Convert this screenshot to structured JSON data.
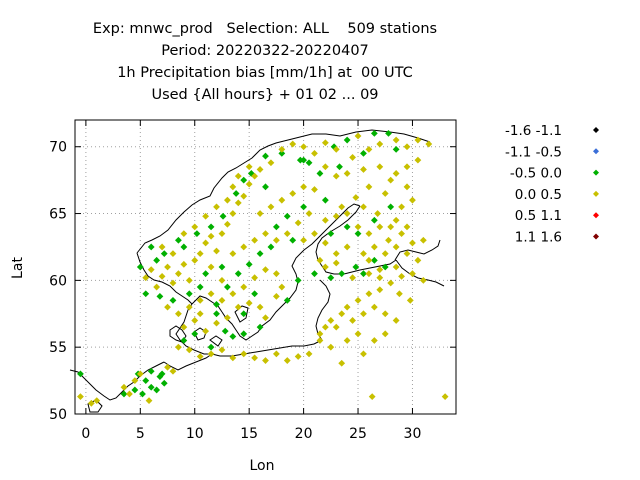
{
  "header": {
    "line1": "Exp: mnwc_prod   Selection: ALL    509 stations",
    "line2": "Period: 20220322-20220407",
    "line3": "1h Precipitation bias [mm/1h] at  00 UTC",
    "line4": "Used {All hours} + 01 02 ... 09"
  },
  "chart_data": {
    "type": "scatter",
    "title": "Exp: mnwc_prod   Selection: ALL    509 stations",
    "xlabel": "Lon",
    "ylabel": "Lat",
    "xlim": [
      -1,
      34
    ],
    "ylim": [
      50,
      72
    ],
    "xticks": [
      "0",
      "5",
      "10",
      "15",
      "20",
      "25",
      "30"
    ],
    "yticks": [
      "50",
      "55",
      "60",
      "65",
      "70"
    ],
    "grid": true,
    "legend_position": "right",
    "legend": [
      {
        "label": "-1.6 -1.1",
        "color": "#000000"
      },
      {
        "label": "-1.1 -0.5",
        "color": "#3a6fd8"
      },
      {
        "label": "-0.5 0.0",
        "color": "#00b000"
      },
      {
        "label": "0.0 0.5",
        "color": "#c8c000"
      },
      {
        "label": "0.5 1.1",
        "color": "#ff0000"
      },
      {
        "label": "1.1 1.6",
        "color": "#800000"
      }
    ],
    "series": [
      {
        "name": "-0.5 0.0",
        "color": "#00b000",
        "points": [
          [
            6.5,
            61.5
          ],
          [
            7.2,
            62.0
          ],
          [
            8.5,
            63.0
          ],
          [
            9.0,
            62.5
          ],
          [
            10.2,
            63.5
          ],
          [
            11.5,
            64.0
          ],
          [
            12.6,
            64.8
          ],
          [
            13.8,
            66.5
          ],
          [
            14.5,
            67.5
          ],
          [
            15.2,
            68.0
          ],
          [
            16.5,
            69.3
          ],
          [
            18.0,
            69.5
          ],
          [
            19.7,
            69.0
          ],
          [
            20.5,
            68.8
          ],
          [
            21.5,
            68.0
          ],
          [
            22.8,
            70.0
          ],
          [
            24.0,
            70.5
          ],
          [
            25.5,
            69.5
          ],
          [
            26.5,
            71.0
          ],
          [
            27.8,
            71.0
          ],
          [
            23.3,
            68.5
          ],
          [
            22.0,
            66.0
          ],
          [
            20.0,
            65.5
          ],
          [
            18.5,
            64.8
          ],
          [
            17.5,
            64.0
          ],
          [
            17.0,
            62.5
          ],
          [
            16.0,
            62.0
          ],
          [
            15.0,
            61.2
          ],
          [
            14.0,
            60.5
          ],
          [
            12.5,
            61.0
          ],
          [
            10.5,
            59.5
          ],
          [
            9.5,
            59.0
          ],
          [
            8.0,
            58.5
          ],
          [
            6.8,
            58.8
          ],
          [
            5.5,
            59.0
          ],
          [
            5.0,
            61.0
          ],
          [
            6.0,
            62.5
          ],
          [
            13.0,
            59.5
          ],
          [
            15.5,
            59.0
          ],
          [
            14.5,
            57.5
          ],
          [
            12.0,
            57.5
          ],
          [
            12.8,
            56.2
          ],
          [
            13.5,
            55.8
          ],
          [
            14.5,
            56.0
          ],
          [
            16.0,
            56.5
          ],
          [
            18.5,
            58.5
          ],
          [
            19.5,
            60.0
          ],
          [
            21.0,
            60.5
          ],
          [
            22.5,
            60.2
          ],
          [
            23.5,
            60.5
          ],
          [
            24.8,
            61.0
          ],
          [
            25.5,
            60.5
          ],
          [
            26.5,
            61.5
          ],
          [
            27.5,
            61.0
          ],
          [
            25.0,
            63.5
          ],
          [
            26.5,
            64.5
          ],
          [
            28.0,
            65.5
          ],
          [
            24.0,
            64.0
          ],
          [
            22.5,
            63.5
          ],
          [
            19.0,
            63.0
          ],
          [
            10.0,
            56.0
          ],
          [
            9.0,
            55.5
          ],
          [
            11.5,
            55.0
          ],
          [
            6.0,
            53.2
          ],
          [
            6.8,
            52.8
          ],
          [
            5.5,
            52.5
          ],
          [
            6.0,
            52.0
          ],
          [
            4.5,
            51.8
          ],
          [
            7.0,
            53.0
          ],
          [
            7.2,
            52.3
          ],
          [
            6.5,
            51.8
          ],
          [
            5.2,
            51.5
          ],
          [
            3.5,
            51.5
          ],
          [
            -0.5,
            53.0
          ],
          [
            4.8,
            53.0
          ],
          [
            16.5,
            67.0
          ],
          [
            20.0,
            69.0
          ],
          [
            28.5,
            69.8
          ],
          [
            12.0,
            58.2
          ],
          [
            11.0,
            60.5
          ]
        ]
      },
      {
        "name": "0.0 0.5",
        "color": "#c8c000",
        "points": [
          [
            5.5,
            60.2
          ],
          [
            6.0,
            60.8
          ],
          [
            7.0,
            60.3
          ],
          [
            7.5,
            61.0
          ],
          [
            8.0,
            59.8
          ],
          [
            8.5,
            60.5
          ],
          [
            9.0,
            61.2
          ],
          [
            9.5,
            60.0
          ],
          [
            10.0,
            61.5
          ],
          [
            10.5,
            62.0
          ],
          [
            11.0,
            62.8
          ],
          [
            11.5,
            63.3
          ],
          [
            12.0,
            62.2
          ],
          [
            12.5,
            63.5
          ],
          [
            13.0,
            64.2
          ],
          [
            13.5,
            65.0
          ],
          [
            14.0,
            65.8
          ],
          [
            14.5,
            66.3
          ],
          [
            15.0,
            67.2
          ],
          [
            15.5,
            67.8
          ],
          [
            16.0,
            68.3
          ],
          [
            17.0,
            68.8
          ],
          [
            18.0,
            69.8
          ],
          [
            19.0,
            70.2
          ],
          [
            20.0,
            70.0
          ],
          [
            21.0,
            69.5
          ],
          [
            22.0,
            70.3
          ],
          [
            23.0,
            69.8
          ],
          [
            24.5,
            69.2
          ],
          [
            25.0,
            70.8
          ],
          [
            26.0,
            69.8
          ],
          [
            27.0,
            70.2
          ],
          [
            28.5,
            70.5
          ],
          [
            29.5,
            70.0
          ],
          [
            30.5,
            70.5
          ],
          [
            31.5,
            70.2
          ],
          [
            22.0,
            68.5
          ],
          [
            23.0,
            67.8
          ],
          [
            24.0,
            68.0
          ],
          [
            25.5,
            68.3
          ],
          [
            27.0,
            68.5
          ],
          [
            28.0,
            67.5
          ],
          [
            27.5,
            66.5
          ],
          [
            26.0,
            67.0
          ],
          [
            24.8,
            66.2
          ],
          [
            23.5,
            65.5
          ],
          [
            25.5,
            65.5
          ],
          [
            26.8,
            65.0
          ],
          [
            28.5,
            64.5
          ],
          [
            29.0,
            63.5
          ],
          [
            27.8,
            63.0
          ],
          [
            26.5,
            62.5
          ],
          [
            25.5,
            62.0
          ],
          [
            24.0,
            62.5
          ],
          [
            23.0,
            62.0
          ],
          [
            22.0,
            62.8
          ],
          [
            21.5,
            61.5
          ],
          [
            22.0,
            61.0
          ],
          [
            23.0,
            61.3
          ],
          [
            24.5,
            60.2
          ],
          [
            26.0,
            60.5
          ],
          [
            27.0,
            60.2
          ],
          [
            28.5,
            61.0
          ],
          [
            29.5,
            62.0
          ],
          [
            30.0,
            62.8
          ],
          [
            31.0,
            63.0
          ],
          [
            29.5,
            64.0
          ],
          [
            30.5,
            61.5
          ],
          [
            29.0,
            60.3
          ],
          [
            28.0,
            59.8
          ],
          [
            27.0,
            59.3
          ],
          [
            26.0,
            59.0
          ],
          [
            25.0,
            58.5
          ],
          [
            24.0,
            58.0
          ],
          [
            23.5,
            57.5
          ],
          [
            22.5,
            57.0
          ],
          [
            22.0,
            56.5
          ],
          [
            21.5,
            56.0
          ],
          [
            23.0,
            56.5
          ],
          [
            24.5,
            57.0
          ],
          [
            25.5,
            57.5
          ],
          [
            26.5,
            58.0
          ],
          [
            27.5,
            57.5
          ],
          [
            25.0,
            56.0
          ],
          [
            24.0,
            55.5
          ],
          [
            22.5,
            55.0
          ],
          [
            21.5,
            55.5
          ],
          [
            20.5,
            54.5
          ],
          [
            19.5,
            54.3
          ],
          [
            18.5,
            54.0
          ],
          [
            17.5,
            54.5
          ],
          [
            16.5,
            54.0
          ],
          [
            15.5,
            54.2
          ],
          [
            14.5,
            54.5
          ],
          [
            13.5,
            54.2
          ],
          [
            12.5,
            54.8
          ],
          [
            11.5,
            54.5
          ],
          [
            10.5,
            54.3
          ],
          [
            9.5,
            54.8
          ],
          [
            8.5,
            55.0
          ],
          [
            9.0,
            56.5
          ],
          [
            10.0,
            57.0
          ],
          [
            10.5,
            57.5
          ],
          [
            11.0,
            56.2
          ],
          [
            12.0,
            56.8
          ],
          [
            13.0,
            57.2
          ],
          [
            14.0,
            58.0
          ],
          [
            15.0,
            58.3
          ],
          [
            16.0,
            58.0
          ],
          [
            16.5,
            57.2
          ],
          [
            17.5,
            58.8
          ],
          [
            18.0,
            59.5
          ],
          [
            17.5,
            60.5
          ],
          [
            16.5,
            60.8
          ],
          [
            15.5,
            60.2
          ],
          [
            14.5,
            59.5
          ],
          [
            13.5,
            59.0
          ],
          [
            12.5,
            58.5
          ],
          [
            11.5,
            59.0
          ],
          [
            10.5,
            58.5
          ],
          [
            9.5,
            58.0
          ],
          [
            8.5,
            57.5
          ],
          [
            7.5,
            58.0
          ],
          [
            6.5,
            59.5
          ],
          [
            7.0,
            62.5
          ],
          [
            8.0,
            62.0
          ],
          [
            9.0,
            63.5
          ],
          [
            10.0,
            64.0
          ],
          [
            11.0,
            64.8
          ],
          [
            12.0,
            65.5
          ],
          [
            13.0,
            66.0
          ],
          [
            13.5,
            67.0
          ],
          [
            14.0,
            67.8
          ],
          [
            15.0,
            68.5
          ],
          [
            16.0,
            65.0
          ],
          [
            17.0,
            65.5
          ],
          [
            18.0,
            66.0
          ],
          [
            19.0,
            66.5
          ],
          [
            20.0,
            67.0
          ],
          [
            21.0,
            66.8
          ],
          [
            20.5,
            65.0
          ],
          [
            19.5,
            64.3
          ],
          [
            18.5,
            63.5
          ],
          [
            17.5,
            63.0
          ],
          [
            16.5,
            63.5
          ],
          [
            15.5,
            63.0
          ],
          [
            14.5,
            62.5
          ],
          [
            13.5,
            62.0
          ],
          [
            12.5,
            60.0
          ],
          [
            11.5,
            61.0
          ],
          [
            21.0,
            63.5
          ],
          [
            20.0,
            63.0
          ],
          [
            22.0,
            64.5
          ],
          [
            23.0,
            64.8
          ],
          [
            24.0,
            65.0
          ],
          [
            25.0,
            64.0
          ],
          [
            26.0,
            63.5
          ],
          [
            27.0,
            64.0
          ],
          [
            28.0,
            64.0
          ],
          [
            29.0,
            65.5
          ],
          [
            30.0,
            66.0
          ],
          [
            29.5,
            67.0
          ],
          [
            28.5,
            68.0
          ],
          [
            29.5,
            68.5
          ],
          [
            30.5,
            69.0
          ],
          [
            26.0,
            61.5
          ],
          [
            27.5,
            62.0
          ],
          [
            28.5,
            62.5
          ],
          [
            30.0,
            60.5
          ],
          [
            31.0,
            60.0
          ],
          [
            4.5,
            52.5
          ],
          [
            5.0,
            53.0
          ],
          [
            4.0,
            51.5
          ],
          [
            3.5,
            52.0
          ],
          [
            5.8,
            51.0
          ],
          [
            7.5,
            53.5
          ],
          [
            8.0,
            53.2
          ],
          [
            1.0,
            51.0
          ],
          [
            -0.5,
            51.3
          ],
          [
            0.5,
            50.8
          ],
          [
            26.3,
            51.3
          ],
          [
            33.0,
            51.3
          ],
          [
            23.5,
            53.8
          ],
          [
            25.5,
            54.5
          ],
          [
            26.5,
            55.5
          ],
          [
            27.5,
            56.0
          ],
          [
            28.5,
            57.0
          ],
          [
            27.0,
            60.8
          ],
          [
            28.8,
            59.0
          ],
          [
            29.8,
            58.5
          ]
        ]
      }
    ]
  }
}
